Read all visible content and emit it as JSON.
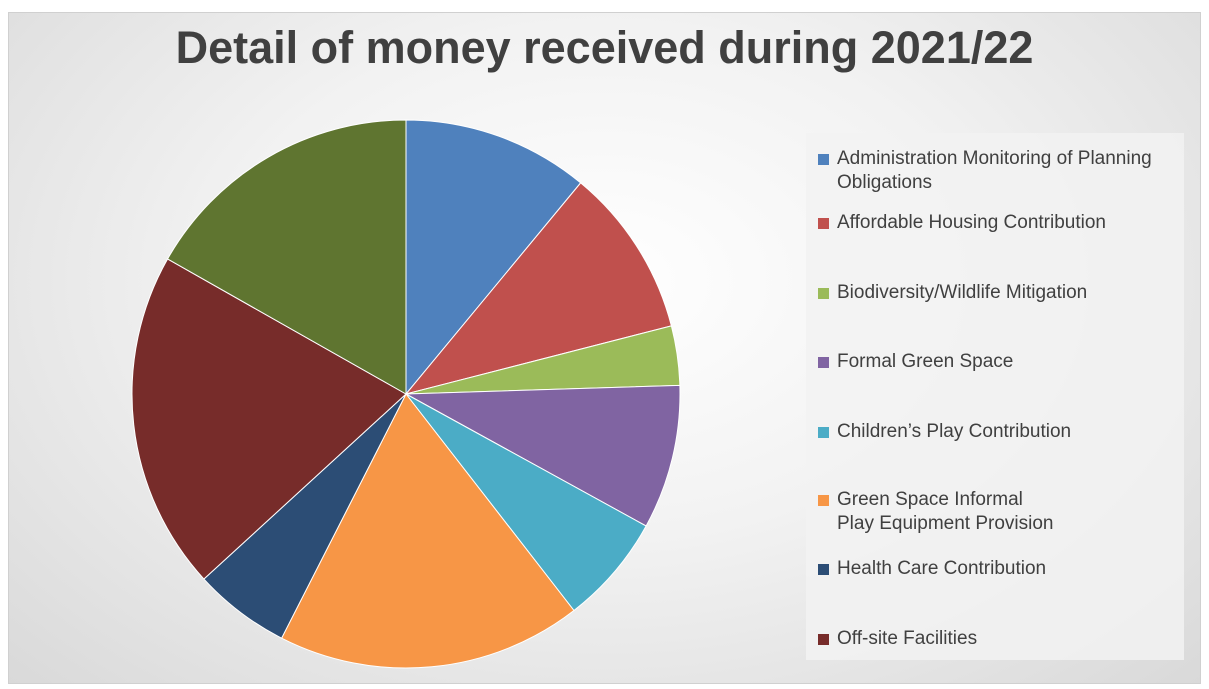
{
  "chart_data": {
    "type": "pie",
    "title": "Detail of money received during 2021/22",
    "legend_position": "right",
    "slices": [
      {
        "label": "Administration Monitoring of Planning Obligations",
        "value": 11.0,
        "color": "#4f81bd"
      },
      {
        "label": "Affordable Housing Contribution",
        "value": 10.0,
        "color": "#c0504d"
      },
      {
        "label": "Biodiversity/Wildlife Mitigation",
        "value": 3.5,
        "color": "#9bbb59"
      },
      {
        "label": "Formal Green Space",
        "value": 8.5,
        "color": "#8064a2"
      },
      {
        "label": "Children’s Play Contribution",
        "value": 6.5,
        "color": "#4bacc6"
      },
      {
        "label": "Green Space Informal Play Equipment Provision",
        "value": 18.0,
        "color": "#f79646"
      },
      {
        "label": "Health Care Contribution",
        "value": 5.7,
        "color": "#2c4d75"
      },
      {
        "label": "Off-site Facilities",
        "value": 20.0,
        "color": "#772c2a"
      },
      {
        "label": "",
        "value": 16.8,
        "color": "#5f7530"
      }
    ]
  }
}
